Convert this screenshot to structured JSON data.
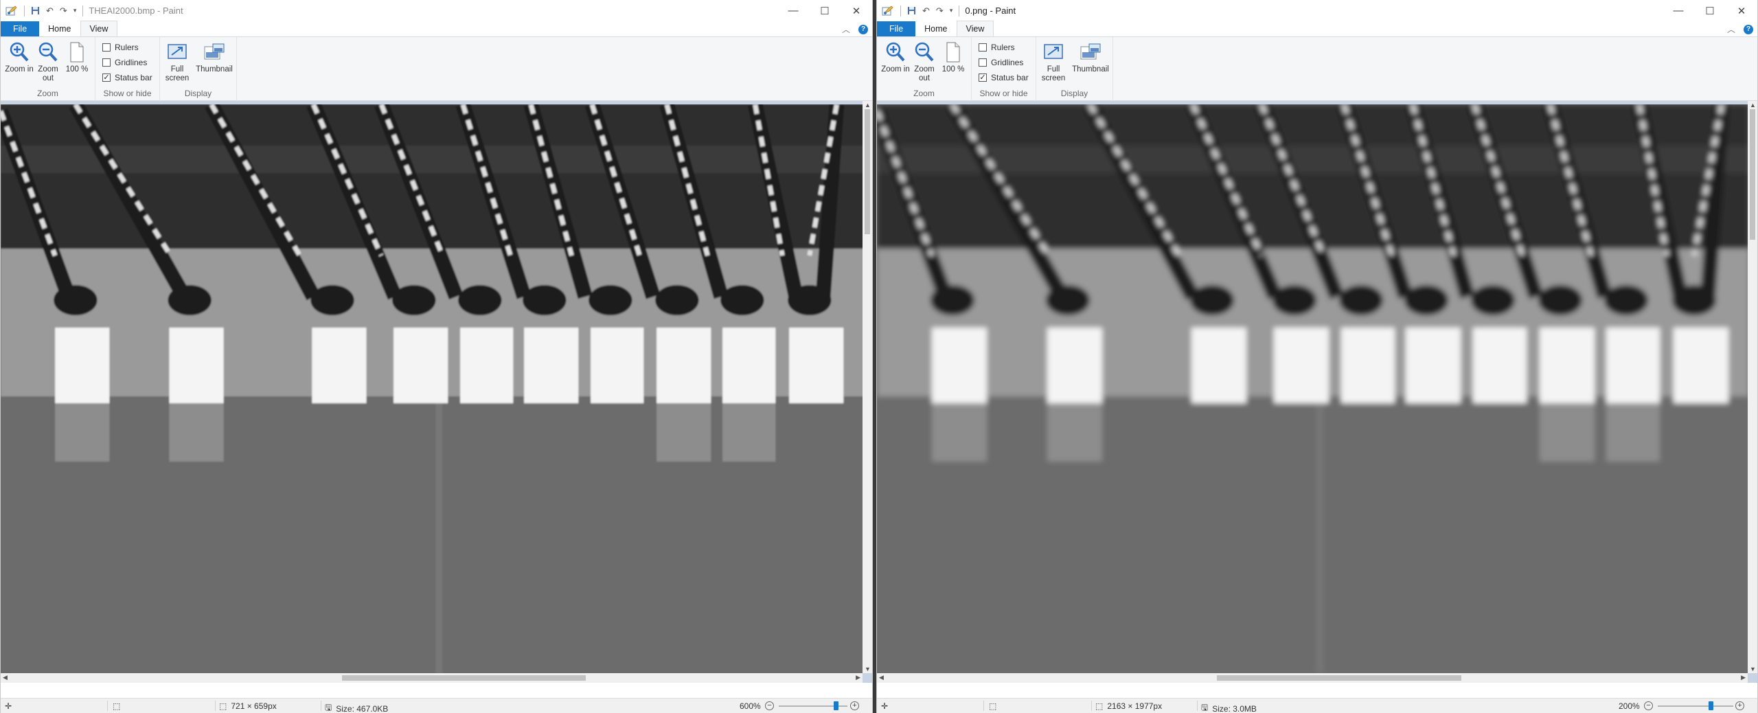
{
  "left_window": {
    "title": "THEAI2000.bmp - Paint",
    "ribbon_tabs": [
      "File",
      "Home",
      "View"
    ],
    "groups": {
      "zoom": {
        "label": "Zoom",
        "zoom_in": "Zoom in",
        "zoom_out": "Zoom out",
        "hundred": "100 %"
      },
      "show_or_hide": {
        "label": "Show or hide",
        "rulers": "Rulers",
        "gridlines": "Gridlines",
        "status_bar": "Status bar",
        "rulers_checked": false,
        "gridlines_checked": false,
        "status_bar_checked": true
      },
      "display": {
        "label": "Display",
        "full_screen": "Full screen",
        "thumbnail": "Thumbnail"
      }
    },
    "status": {
      "dimensions": "721 × 659px",
      "size": "Size: 467.0KB",
      "zoom": "600%"
    },
    "zoom_level": 0.83,
    "image": {
      "sharpness": "pixelated"
    }
  },
  "right_window": {
    "title": "0.png - Paint",
    "ribbon_tabs": [
      "File",
      "Home",
      "View"
    ],
    "groups": {
      "zoom": {
        "label": "Zoom",
        "zoom_in": "Zoom in",
        "zoom_out": "Zoom out",
        "hundred": "100 %"
      },
      "show_or_hide": {
        "label": "Show or hide",
        "rulers": "Rulers",
        "gridlines": "Gridlines",
        "status_bar": "Status bar",
        "rulers_checked": false,
        "gridlines_checked": false,
        "status_bar_checked": true
      },
      "display": {
        "label": "Display",
        "full_screen": "Full screen",
        "thumbnail": "Thumbnail"
      }
    },
    "status": {
      "dimensions": "2163 × 1977px",
      "size": "Size: 3.0MB",
      "zoom": "200%"
    },
    "zoom_level": 0.7,
    "image": {
      "sharpness": "smooth"
    }
  },
  "colors": {
    "accent": "#1979ca",
    "ribbon_bg": "#f5f6f7",
    "canvas_border": "#c8d4e3"
  }
}
